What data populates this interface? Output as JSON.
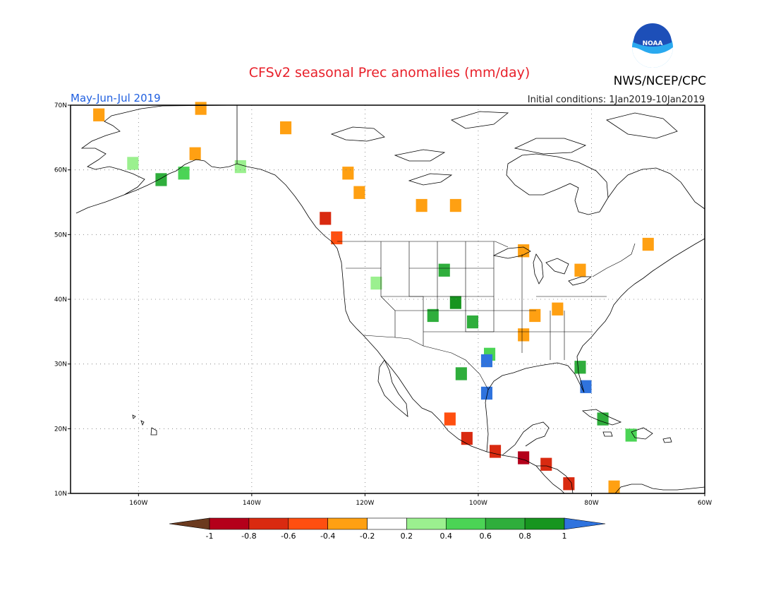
{
  "header": {
    "title": "CFSv2 seasonal Prec anomalies (mm/day)",
    "organization": "NWS/NCEP/CPC",
    "logo_text": "NOAA",
    "period": "May-Jun-Jul 2019",
    "initial_conditions": "Initial conditions: 1Jan2019-10Jan2019"
  },
  "map": {
    "lon_range": [
      -172,
      -60
    ],
    "lat_range": [
      10,
      70
    ],
    "lat_labels": [
      "10N",
      "20N",
      "30N",
      "40N",
      "50N",
      "60N",
      "70N"
    ],
    "lat_values": [
      10,
      20,
      30,
      40,
      50,
      60,
      70
    ],
    "lon_labels": [
      "160W",
      "140W",
      "120W",
      "100W",
      "80W",
      "60W"
    ],
    "lon_values": [
      -160,
      -140,
      -120,
      -100,
      -80,
      -60
    ],
    "grid": true
  },
  "colorbar": {
    "ticks": [
      "-1",
      "-0.8",
      "-0.6",
      "-0.4",
      "-0.2",
      "0.2",
      "0.4",
      "0.6",
      "0.8",
      "1"
    ],
    "colors": [
      "#6b3a1f",
      "#b4001a",
      "#d92a10",
      "#ff4f10",
      "#ffa012",
      "#ffffff",
      "#9bf08f",
      "#4bd455",
      "#2fae3c",
      "#17951f",
      "#2f73de"
    ]
  },
  "anomaly_cells": [
    {
      "lon": -167,
      "lat": 68.5,
      "value": -0.4
    },
    {
      "lon": -149,
      "lat": 69.5,
      "value": -0.4
    },
    {
      "lon": -134,
      "lat": 66.5,
      "value": -0.4
    },
    {
      "lon": -161,
      "lat": 61,
      "value": 0.3
    },
    {
      "lon": -156,
      "lat": 58.5,
      "value": 0.6
    },
    {
      "lon": -152,
      "lat": 59.5,
      "value": 0.4
    },
    {
      "lon": -142,
      "lat": 60.5,
      "value": 0.3
    },
    {
      "lon": -150,
      "lat": 62.5,
      "value": -0.4
    },
    {
      "lon": -123,
      "lat": 59.5,
      "value": -0.4
    },
    {
      "lon": -121,
      "lat": 56.5,
      "value": -0.4
    },
    {
      "lon": -127,
      "lat": 52.5,
      "value": -0.7
    },
    {
      "lon": -125,
      "lat": 49.5,
      "value": -0.6
    },
    {
      "lon": -104,
      "lat": 54.5,
      "value": -0.4
    },
    {
      "lon": -110,
      "lat": 54.5,
      "value": -0.4
    },
    {
      "lon": -92,
      "lat": 47.5,
      "value": -0.4
    },
    {
      "lon": -70,
      "lat": 48.5,
      "value": -0.4
    },
    {
      "lon": -90,
      "lat": 37.5,
      "value": -0.4
    },
    {
      "lon": -86,
      "lat": 38.5,
      "value": -0.4
    },
    {
      "lon": -92,
      "lat": 34.5,
      "value": -0.4
    },
    {
      "lon": -82,
      "lat": 44.5,
      "value": -0.4
    },
    {
      "lon": -118,
      "lat": 42.5,
      "value": 0.3
    },
    {
      "lon": -106,
      "lat": 44.5,
      "value": 0.6
    },
    {
      "lon": -104,
      "lat": 39.5,
      "value": 0.8
    },
    {
      "lon": -108,
      "lat": 37.5,
      "value": 0.6
    },
    {
      "lon": -101,
      "lat": 36.5,
      "value": 0.6
    },
    {
      "lon": -98,
      "lat": 31.5,
      "value": 0.5
    },
    {
      "lon": -98.5,
      "lat": 30.5,
      "value": 1
    },
    {
      "lon": -103,
      "lat": 28.5,
      "value": 0.7
    },
    {
      "lon": -98.5,
      "lat": 25.5,
      "value": 1
    },
    {
      "lon": -82,
      "lat": 29.5,
      "value": 0.6
    },
    {
      "lon": -81,
      "lat": 26.5,
      "value": 1
    },
    {
      "lon": -78,
      "lat": 21.5,
      "value": 0.7
    },
    {
      "lon": -73,
      "lat": 19,
      "value": 0.5
    },
    {
      "lon": -105,
      "lat": 21.5,
      "value": -0.6
    },
    {
      "lon": -102,
      "lat": 18.5,
      "value": -0.8
    },
    {
      "lon": -97,
      "lat": 16.5,
      "value": -0.8
    },
    {
      "lon": -92,
      "lat": 15.5,
      "value": -0.9
    },
    {
      "lon": -88,
      "lat": 14.5,
      "value": -0.7
    },
    {
      "lon": -84,
      "lat": 11.5,
      "value": -0.8
    },
    {
      "lon": -76,
      "lat": 11,
      "value": -0.4
    }
  ]
}
